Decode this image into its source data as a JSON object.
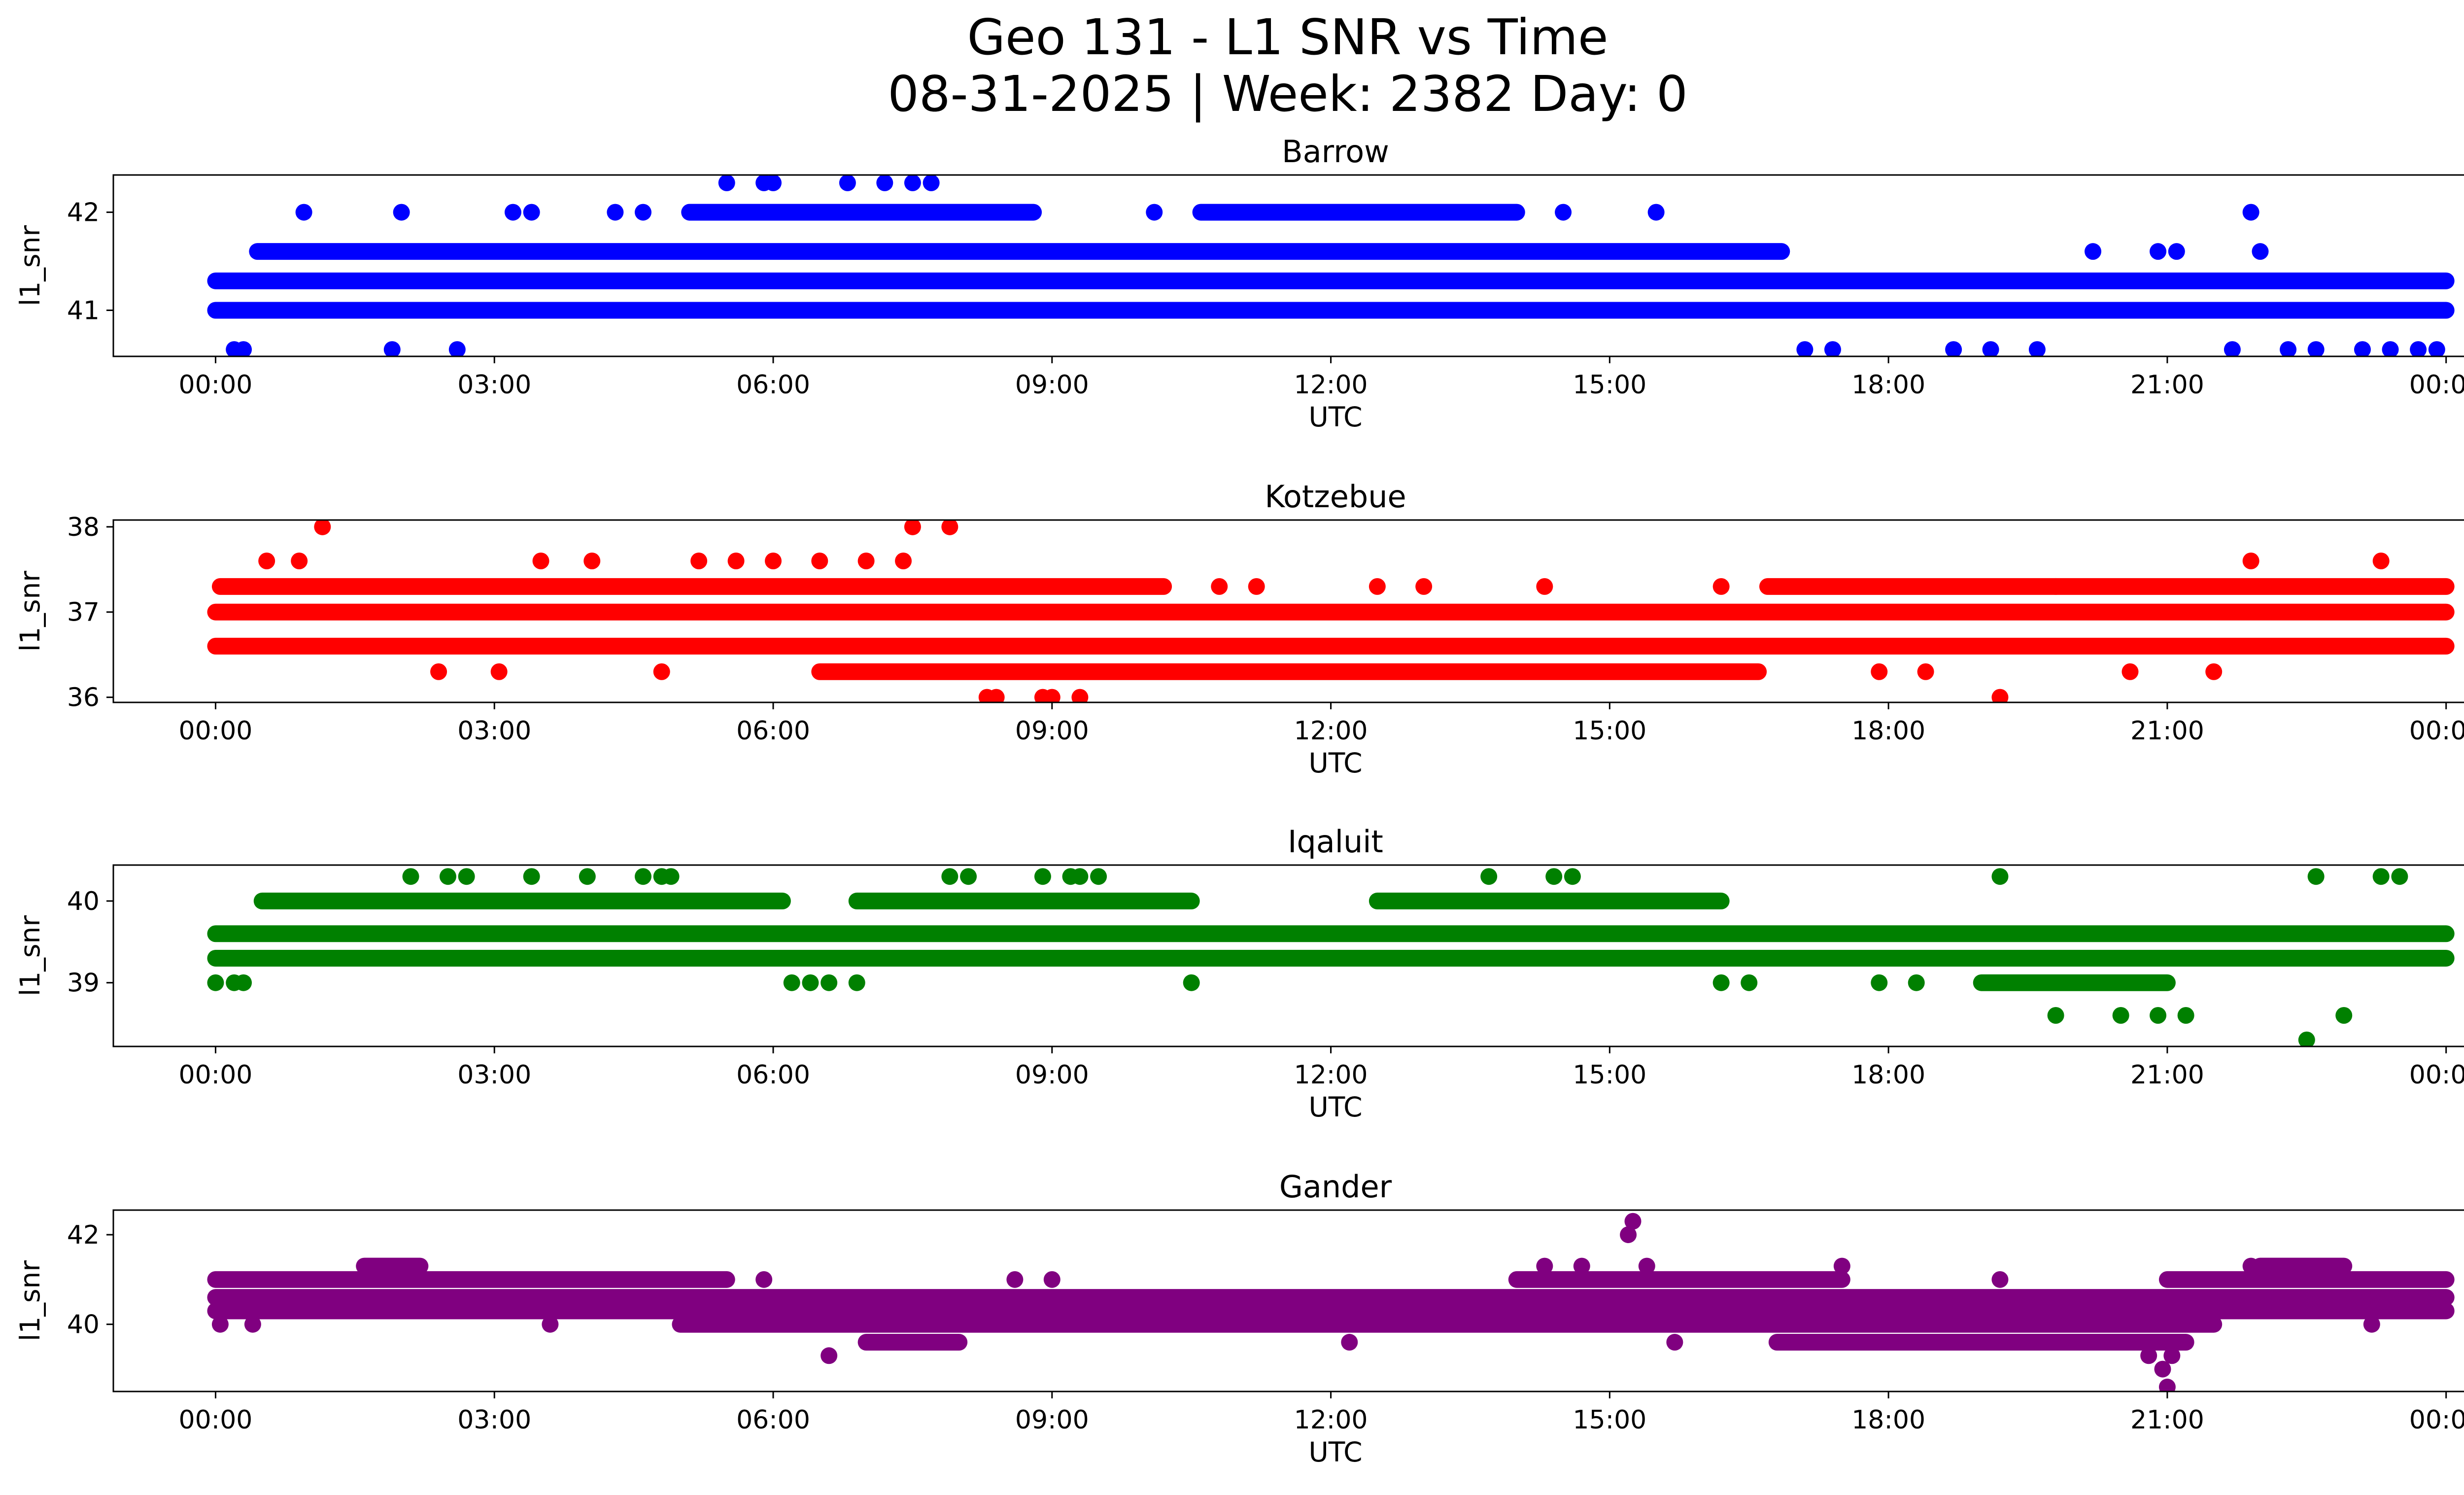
{
  "title_line1": "Geo 131 - L1 SNR vs Time",
  "title_line2": "08-31-2025 | Week: 2382 Day: 0",
  "chart_data": [
    {
      "type": "scatter",
      "title": "Barrow",
      "xlabel": "UTC",
      "ylabel": "l1_snr",
      "color": "#0000ff",
      "xlim": [
        -1.1,
        25.2
      ],
      "ylim": [
        40.53,
        42.38
      ],
      "xticks": [
        0,
        3,
        6,
        9,
        12,
        15,
        18,
        21,
        24
      ],
      "xtick_labels": [
        "00:00",
        "03:00",
        "06:00",
        "09:00",
        "12:00",
        "15:00",
        "18:00",
        "21:00",
        "00:00"
      ],
      "yticks": [
        41,
        42
      ],
      "ytick_labels": [
        "41",
        "42"
      ],
      "bands": [
        {
          "y": 41.3,
          "x_start": 0.0,
          "x_end": 24.0
        },
        {
          "y": 41.0,
          "x_start": 0.0,
          "x_end": 24.0
        },
        {
          "y": 41.6,
          "x_start": 0.45,
          "x_end": 16.85
        },
        {
          "y": 42.0,
          "x_start": 5.1,
          "x_end": 8.8
        },
        {
          "y": 42.0,
          "x_start": 10.6,
          "x_end": 14.0
        }
      ],
      "x": [
        0.2,
        0.3,
        0.95,
        1.9,
        2.0,
        2.6,
        3.2,
        3.4,
        4.3,
        4.6,
        5.5,
        5.9,
        6.0,
        6.8,
        7.2,
        7.5,
        7.7,
        10.1,
        10.7,
        14.5,
        14.7,
        15.0,
        15.5,
        17.1,
        17.4,
        18.7,
        19.1,
        19.6,
        20.2,
        20.9,
        21.1,
        21.7,
        21.9,
        22.0,
        22.3,
        22.6,
        23.1,
        23.4,
        23.7,
        23.9
      ],
      "y": [
        40.6,
        40.6,
        42.0,
        40.6,
        42.0,
        40.6,
        42.0,
        42.0,
        42.0,
        42.0,
        42.3,
        42.3,
        42.3,
        42.3,
        42.3,
        42.3,
        42.3,
        42.0,
        41.0,
        42.0,
        41.0,
        41.0,
        42.0,
        40.6,
        40.6,
        40.6,
        40.6,
        40.6,
        41.6,
        41.6,
        41.6,
        40.6,
        42.0,
        41.6,
        40.6,
        40.6,
        40.6,
        40.6,
        40.6,
        40.6
      ]
    },
    {
      "type": "scatter",
      "title": "Kotzebue",
      "xlabel": "UTC",
      "ylabel": "l1_snr",
      "color": "#ff0000",
      "xlim": [
        -1.1,
        25.2
      ],
      "ylim": [
        35.94,
        38.08
      ],
      "xticks": [
        0,
        3,
        6,
        9,
        12,
        15,
        18,
        21,
        24
      ],
      "xtick_labels": [
        "00:00",
        "03:00",
        "06:00",
        "09:00",
        "12:00",
        "15:00",
        "18:00",
        "21:00",
        "00:00"
      ],
      "yticks": [
        36,
        37,
        38
      ],
      "ytick_labels": [
        "36",
        "37",
        "38"
      ],
      "bands": [
        {
          "y": 37.0,
          "x_start": 0.0,
          "x_end": 24.0
        },
        {
          "y": 36.6,
          "x_start": 0.0,
          "x_end": 24.0
        },
        {
          "y": 37.3,
          "x_start": 0.05,
          "x_end": 10.2
        },
        {
          "y": 37.3,
          "x_start": 16.7,
          "x_end": 24.0
        },
        {
          "y": 36.3,
          "x_start": 6.5,
          "x_end": 16.6
        }
      ],
      "x": [
        0.55,
        0.9,
        1.15,
        2.4,
        3.05,
        3.5,
        4.05,
        4.8,
        5.2,
        5.6,
        6.0,
        6.5,
        7.0,
        7.4,
        7.5,
        7.9,
        8.3,
        8.4,
        8.9,
        9.0,
        9.3,
        10.8,
        11.2,
        12.5,
        13.0,
        14.3,
        16.2,
        17.9,
        18.4,
        19.2,
        19.8,
        20.6,
        21.5,
        21.9,
        23.3
      ],
      "y": [
        37.6,
        37.6,
        38.0,
        36.3,
        36.3,
        37.6,
        37.6,
        36.3,
        37.6,
        37.6,
        37.6,
        37.6,
        37.6,
        37.6,
        38.0,
        38.0,
        36.0,
        36.0,
        36.0,
        36.0,
        36.0,
        37.3,
        37.3,
        37.3,
        37.3,
        37.3,
        37.3,
        36.3,
        36.3,
        36.0,
        37.3,
        36.3,
        36.3,
        37.6,
        37.6
      ]
    },
    {
      "type": "scatter",
      "title": "Iqaluit",
      "xlabel": "UTC",
      "ylabel": "l1_snr",
      "color": "#008000",
      "xlim": [
        -1.1,
        25.2
      ],
      "ylim": [
        38.22,
        40.44
      ],
      "xticks": [
        0,
        3,
        6,
        9,
        12,
        15,
        18,
        21,
        24
      ],
      "xtick_labels": [
        "00:00",
        "03:00",
        "06:00",
        "09:00",
        "12:00",
        "15:00",
        "18:00",
        "21:00",
        "00:00"
      ],
      "yticks": [
        39,
        40
      ],
      "ytick_labels": [
        "39",
        "40"
      ],
      "bands": [
        {
          "y": 39.6,
          "x_start": 0.0,
          "x_end": 24.0
        },
        {
          "y": 39.3,
          "x_start": 0.0,
          "x_end": 24.0
        },
        {
          "y": 40.0,
          "x_start": 0.5,
          "x_end": 6.1
        },
        {
          "y": 40.0,
          "x_start": 6.9,
          "x_end": 10.5
        },
        {
          "y": 40.0,
          "x_start": 12.5,
          "x_end": 16.2
        },
        {
          "y": 39.0,
          "x_start": 19.0,
          "x_end": 21.0
        }
      ],
      "x": [
        0.0,
        0.2,
        0.3,
        2.1,
        2.5,
        2.7,
        3.4,
        4.0,
        4.6,
        4.8,
        4.9,
        6.2,
        6.4,
        6.6,
        6.9,
        7.9,
        8.1,
        8.9,
        9.2,
        9.3,
        9.5,
        10.5,
        13.7,
        14.4,
        14.6,
        16.2,
        16.5,
        17.9,
        18.3,
        19.2,
        19.8,
        20.5,
        20.9,
        21.2,
        22.5,
        22.6,
        22.9,
        23.3,
        23.5
      ],
      "y": [
        39.0,
        39.0,
        39.0,
        40.3,
        40.3,
        40.3,
        40.3,
        40.3,
        40.3,
        40.3,
        40.3,
        39.0,
        39.0,
        39.0,
        39.0,
        40.3,
        40.3,
        40.3,
        40.3,
        40.3,
        40.3,
        39.0,
        40.3,
        40.3,
        40.3,
        39.0,
        39.0,
        39.0,
        39.0,
        40.3,
        38.6,
        38.6,
        38.6,
        38.6,
        38.3,
        40.3,
        38.6,
        40.3,
        40.3
      ]
    },
    {
      "type": "scatter",
      "title": "Gander",
      "xlabel": "UTC",
      "ylabel": "l1_snr",
      "color": "#800080",
      "xlim": [
        -1.1,
        25.2
      ],
      "ylim": [
        38.5,
        42.55
      ],
      "xticks": [
        0,
        3,
        6,
        9,
        12,
        15,
        18,
        21,
        24
      ],
      "xtick_labels": [
        "00:00",
        "03:00",
        "06:00",
        "09:00",
        "12:00",
        "15:00",
        "18:00",
        "21:00",
        "00:00"
      ],
      "yticks": [
        40,
        42
      ],
      "ytick_labels": [
        "40",
        "42"
      ],
      "bands": [
        {
          "y": 40.6,
          "x_start": 0.0,
          "x_end": 24.0
        },
        {
          "y": 40.3,
          "x_start": 0.0,
          "x_end": 24.0
        },
        {
          "y": 40.0,
          "x_start": 5.0,
          "x_end": 21.5
        },
        {
          "y": 41.0,
          "x_start": 0.0,
          "x_end": 5.5
        },
        {
          "y": 41.0,
          "x_start": 14.0,
          "x_end": 17.5
        },
        {
          "y": 41.0,
          "x_start": 21.0,
          "x_end": 24.0
        },
        {
          "y": 39.6,
          "x_start": 7.0,
          "x_end": 8.0
        },
        {
          "y": 39.6,
          "x_start": 16.8,
          "x_end": 21.2
        },
        {
          "y": 41.3,
          "x_start": 1.6,
          "x_end": 2.2
        },
        {
          "y": 41.3,
          "x_start": 22.0,
          "x_end": 22.9
        }
      ],
      "x": [
        0.05,
        0.4,
        3.6,
        5.9,
        6.6,
        8.6,
        9.0,
        12.2,
        14.3,
        14.7,
        15.2,
        15.25,
        15.4,
        15.7,
        17.1,
        17.5,
        18.1,
        18.5,
        19.2,
        20.4,
        20.8,
        20.95,
        21.0,
        21.05,
        21.9,
        23.2
      ],
      "y": [
        40.0,
        40.0,
        40.0,
        41.0,
        39.3,
        41.0,
        41.0,
        39.6,
        41.3,
        41.3,
        42.0,
        42.3,
        41.3,
        39.6,
        39.6,
        41.3,
        39.6,
        39.6,
        41.0,
        39.6,
        39.3,
        39.0,
        38.6,
        39.3,
        41.3,
        40.0
      ]
    }
  ]
}
